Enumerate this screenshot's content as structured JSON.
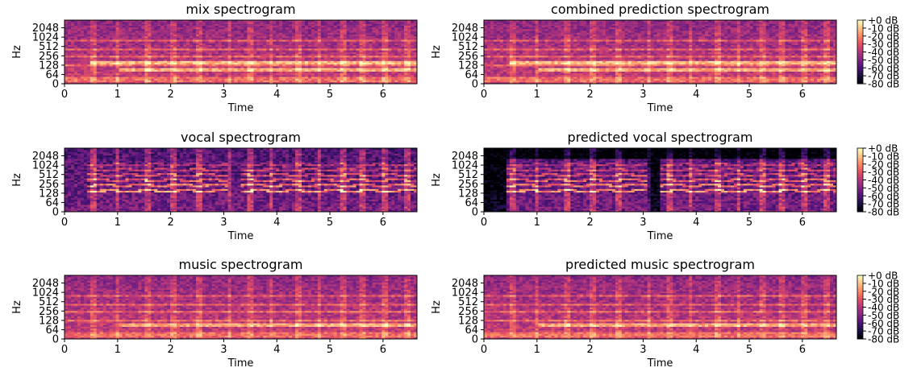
{
  "chart_data": [
    {
      "type": "heatmap",
      "title": "mix spectrogram",
      "xlabel": "Time",
      "ylabel": "Hz",
      "xlim": [
        0,
        6.64
      ],
      "yscale": "log",
      "xticks": [
        0,
        1,
        2,
        3,
        4,
        5,
        6
      ],
      "yticks": [
        0,
        64,
        128,
        256,
        512,
        1024,
        2048
      ],
      "texture": "mix"
    },
    {
      "type": "heatmap",
      "title": "combined prediction spectrogram",
      "xlabel": "Time",
      "ylabel": "Hz",
      "xlim": [
        0,
        6.64
      ],
      "yscale": "log",
      "xticks": [
        0,
        1,
        2,
        3,
        4,
        5,
        6
      ],
      "yticks": [
        0,
        64,
        128,
        256,
        512,
        1024,
        2048
      ],
      "texture": "mix",
      "colorbar": true
    },
    {
      "type": "heatmap",
      "title": "vocal spectrogram",
      "xlabel": "Time",
      "ylabel": "Hz",
      "xlim": [
        0,
        6.64
      ],
      "yscale": "log",
      "xticks": [
        0,
        1,
        2,
        3,
        4,
        5,
        6
      ],
      "yticks": [
        0,
        64,
        128,
        256,
        512,
        1024,
        2048
      ],
      "texture": "vocal"
    },
    {
      "type": "heatmap",
      "title": "predicted vocal spectrogram",
      "xlabel": "Time",
      "ylabel": "Hz",
      "xlim": [
        0,
        6.64
      ],
      "yscale": "log",
      "xticks": [
        0,
        1,
        2,
        3,
        4,
        5,
        6
      ],
      "yticks": [
        0,
        64,
        128,
        256,
        512,
        1024,
        2048
      ],
      "texture": "predvocal",
      "colorbar": true
    },
    {
      "type": "heatmap",
      "title": "music spectrogram",
      "xlabel": "Time",
      "ylabel": "Hz",
      "xlim": [
        0,
        6.64
      ],
      "yscale": "log",
      "xticks": [
        0,
        1,
        2,
        3,
        4,
        5,
        6
      ],
      "yticks": [
        0,
        64,
        128,
        256,
        512,
        1024,
        2048
      ],
      "texture": "music"
    },
    {
      "type": "heatmap",
      "title": "predicted music spectrogram",
      "xlabel": "Time",
      "ylabel": "Hz",
      "xlim": [
        0,
        6.64
      ],
      "yscale": "log",
      "xticks": [
        0,
        1,
        2,
        3,
        4,
        5,
        6
      ],
      "yticks": [
        0,
        64,
        128,
        256,
        512,
        1024,
        2048
      ],
      "texture": "music",
      "colorbar": true
    }
  ],
  "colorbar": {
    "colormap": "magma",
    "range_db": [
      -80,
      0
    ],
    "tick_labels": [
      "+0 dB",
      "-10 dB",
      "-20 dB",
      "-30 dB",
      "-40 dB",
      "-50 dB",
      "-60 dB",
      "-70 dB",
      "-80 dB"
    ]
  }
}
